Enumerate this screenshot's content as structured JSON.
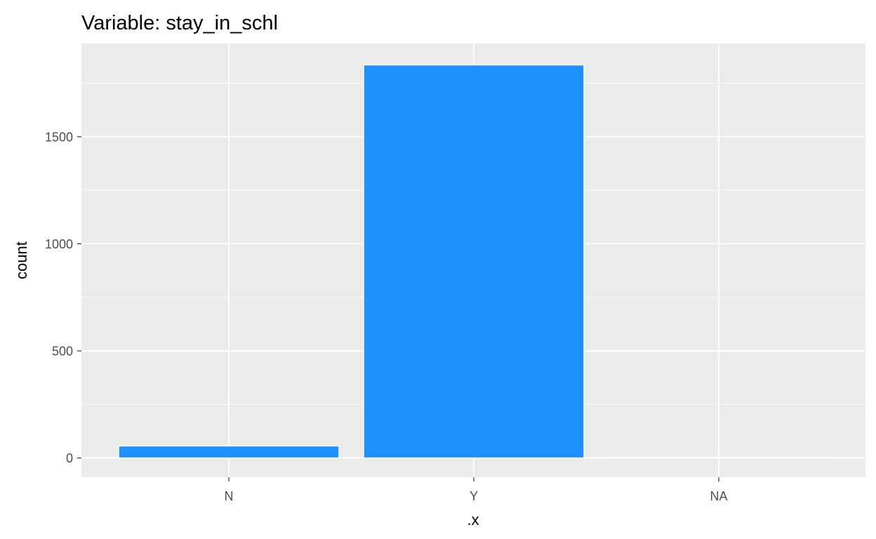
{
  "chart_data": {
    "type": "bar",
    "title": "Variable: stay_in_schl",
    "xlabel": ".x",
    "ylabel": "count",
    "categories": [
      "N",
      "Y",
      "NA"
    ],
    "values": [
      56,
      1835,
      2
    ],
    "ylim": [
      -90,
      1935
    ],
    "yticks": [
      0,
      500,
      1000,
      1500
    ],
    "ytick_labels": [
      "0",
      "500",
      "1000",
      "1500"
    ],
    "grid": true,
    "legend": "none",
    "colors": {
      "bar_fill": "#1E90FF",
      "bar_outline": "#FFFFFF",
      "panel_background": "#EBEBEB",
      "grid": "#FFFFFF",
      "tick_text": "#4D4D4D",
      "tick_mark": "#333333"
    }
  }
}
